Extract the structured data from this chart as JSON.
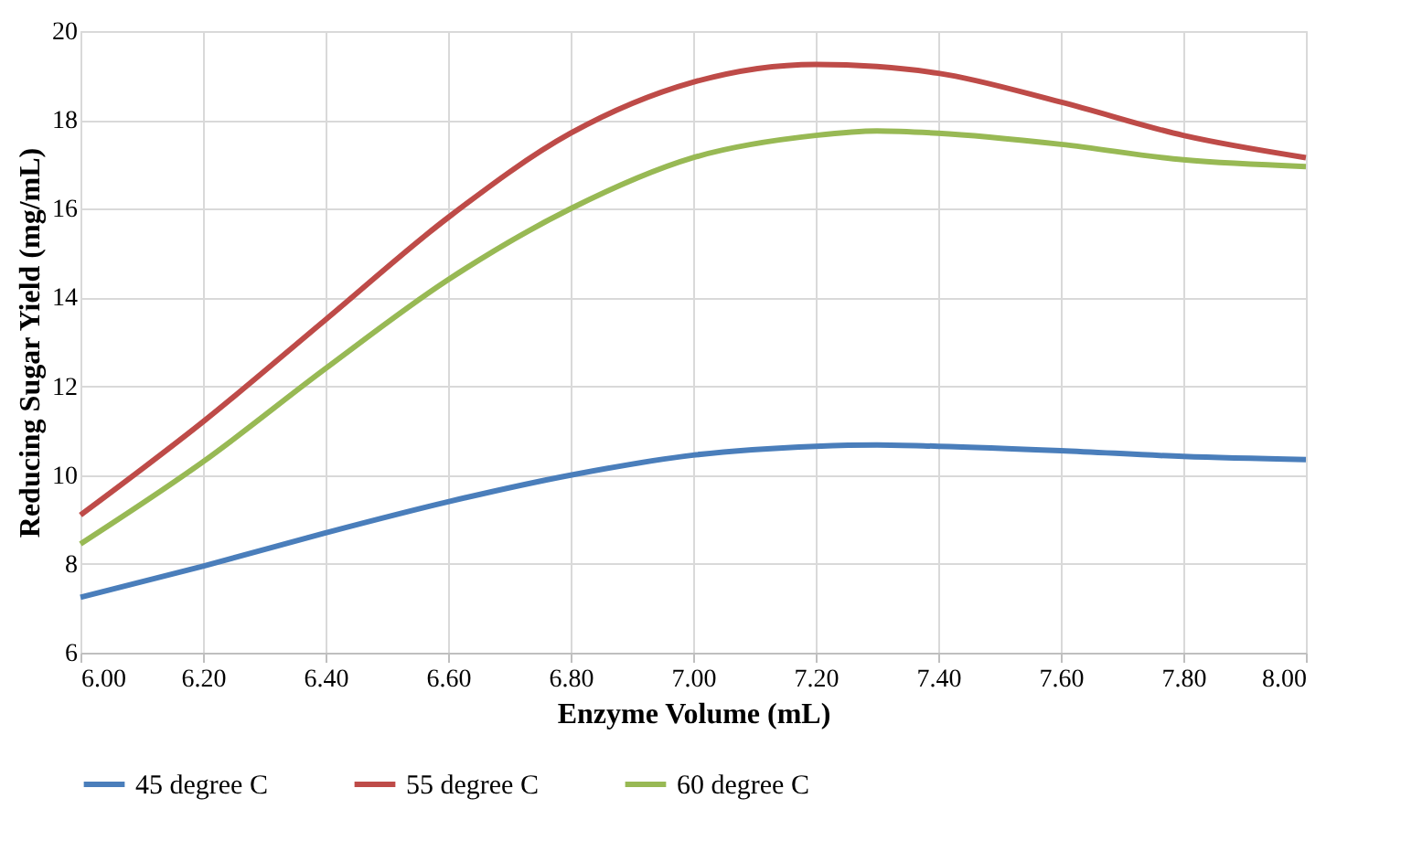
{
  "chart_data": {
    "type": "line",
    "xlabel": "Enzyme Volume (mL)",
    "ylabel": "Reducing Sugar Yield (mg/mL)",
    "x": [
      6.0,
      6.2,
      6.4,
      6.6,
      6.8,
      7.0,
      7.2,
      7.3,
      7.4,
      7.6,
      7.8,
      8.0
    ],
    "series": [
      {
        "name": "45 degree C",
        "color": "#4a7ebb",
        "values": [
          7.25,
          7.95,
          8.7,
          9.4,
          10.0,
          10.45,
          10.65,
          10.68,
          10.65,
          10.55,
          10.42,
          10.35
        ]
      },
      {
        "name": "55 degree C",
        "color": "#be4b48",
        "values": [
          9.1,
          11.2,
          13.5,
          15.8,
          17.7,
          18.85,
          19.25,
          19.2,
          19.05,
          18.4,
          17.65,
          17.15
        ]
      },
      {
        "name": "60 degree C",
        "color": "#98b954",
        "values": [
          8.45,
          10.3,
          12.4,
          14.4,
          16.0,
          17.15,
          17.65,
          17.75,
          17.7,
          17.45,
          17.1,
          16.95
        ]
      }
    ],
    "xlim": [
      6.0,
      8.0
    ],
    "xticks": [
      {
        "value": 6.0,
        "label": "6.00"
      },
      {
        "value": 6.2,
        "label": "6.20"
      },
      {
        "value": 6.4,
        "label": "6.40"
      },
      {
        "value": 6.6,
        "label": "6.60"
      },
      {
        "value": 6.8,
        "label": "6.80"
      },
      {
        "value": 7.0,
        "label": "7.00"
      },
      {
        "value": 7.2,
        "label": "7.20"
      },
      {
        "value": 7.4,
        "label": "7.40"
      },
      {
        "value": 7.6,
        "label": "7.60"
      },
      {
        "value": 7.8,
        "label": "7.80"
      },
      {
        "value": 8.0,
        "label": "8.00"
      }
    ],
    "ylim": [
      6,
      20
    ],
    "yticks": [
      6,
      8,
      10,
      12,
      14,
      16,
      18,
      20
    ],
    "grid": true,
    "legend": "bottom",
    "marker": "none",
    "line_style": "solid"
  }
}
